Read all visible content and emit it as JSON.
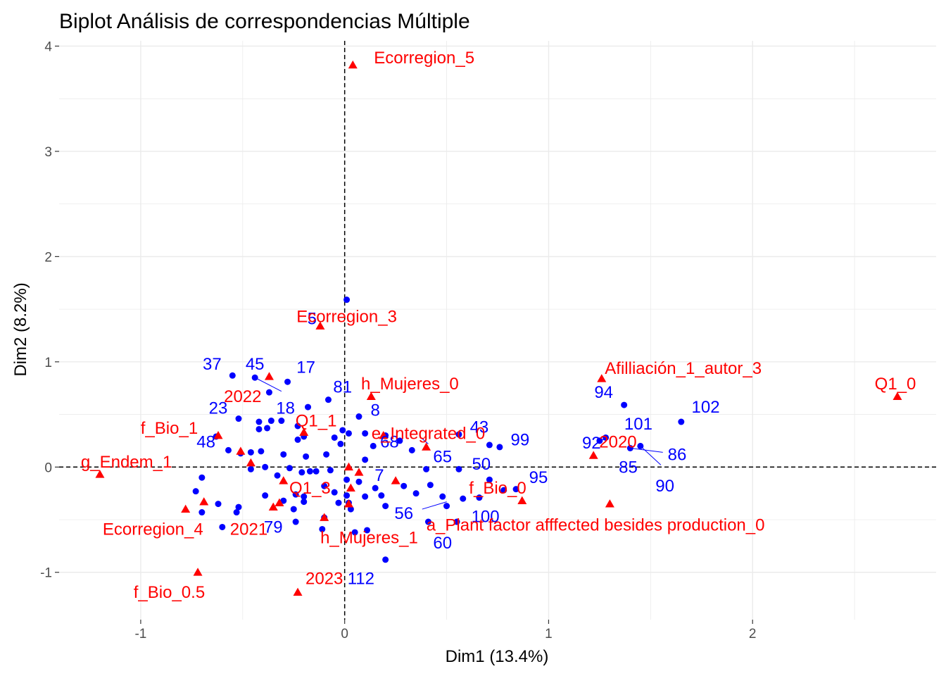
{
  "chart_data": {
    "type": "scatter",
    "title": "Biplot Análisis de correspondencias Múltiple",
    "xlabel": "Dim1 (13.4%)",
    "ylabel": "Dim2 (8.2%)",
    "xlim": [
      -1.4,
      2.9
    ],
    "ylim": [
      -1.45,
      4.05
    ],
    "x_ticks": [
      -1,
      0,
      1,
      2
    ],
    "x_tick_labels": [
      "-1",
      "0",
      "1",
      "2"
    ],
    "y_ticks": [
      -1,
      0,
      1,
      2,
      3,
      4
    ],
    "y_tick_labels": [
      "-1",
      "0",
      "1",
      "2",
      "3",
      "4"
    ],
    "grid": true,
    "reference_lines": {
      "x": 0,
      "y": 0,
      "style": "dashed"
    },
    "colors": {
      "individuals": "#0000ff",
      "variables": "#ff0000"
    },
    "individuals": {
      "name": "individuals",
      "marker": "circle",
      "points": [
        {
          "x": 0.01,
          "y": 1.59
        },
        {
          "x": -0.55,
          "y": 0.87
        },
        {
          "x": -0.44,
          "y": 0.85
        },
        {
          "x": -0.28,
          "y": 0.81
        },
        {
          "x": -0.37,
          "y": 0.71
        },
        {
          "x": -0.08,
          "y": 0.64
        },
        {
          "x": -0.52,
          "y": 0.46
        },
        {
          "x": -0.31,
          "y": 0.44
        },
        {
          "x": 0.07,
          "y": 0.48
        },
        {
          "x": -0.18,
          "y": 0.57
        },
        {
          "x": -0.42,
          "y": 0.43
        },
        {
          "x": -0.36,
          "y": 0.44
        },
        {
          "x": -0.42,
          "y": 0.36
        },
        {
          "x": -0.38,
          "y": 0.37
        },
        {
          "x": -0.23,
          "y": 0.39
        },
        {
          "x": -0.2,
          "y": 0.29
        },
        {
          "x": -0.23,
          "y": 0.26
        },
        {
          "x": -0.05,
          "y": 0.28
        },
        {
          "x": -0.02,
          "y": 0.22
        },
        {
          "x": -0.01,
          "y": 0.35
        },
        {
          "x": 0.02,
          "y": 0.32
        },
        {
          "x": 0.1,
          "y": 0.32
        },
        {
          "x": -0.63,
          "y": 0.29
        },
        {
          "x": -0.57,
          "y": 0.16
        },
        {
          "x": -0.51,
          "y": 0.13
        },
        {
          "x": -0.46,
          "y": 0.14
        },
        {
          "x": -0.41,
          "y": 0.15
        },
        {
          "x": -0.3,
          "y": 0.12
        },
        {
          "x": -0.19,
          "y": 0.1
        },
        {
          "x": -0.09,
          "y": 0.12
        },
        {
          "x": -0.46,
          "y": -0.02
        },
        {
          "x": -0.39,
          "y": 0.0
        },
        {
          "x": -0.33,
          "y": -0.08
        },
        {
          "x": -0.27,
          "y": -0.01
        },
        {
          "x": -0.21,
          "y": -0.05
        },
        {
          "x": -0.17,
          "y": -0.04
        },
        {
          "x": -0.14,
          "y": -0.04
        },
        {
          "x": -0.07,
          "y": -0.03
        },
        {
          "x": 0.01,
          "y": -0.12
        },
        {
          "x": 0.1,
          "y": 0.07
        },
        {
          "x": 0.14,
          "y": 0.2
        },
        {
          "x": 0.2,
          "y": 0.3
        },
        {
          "x": 0.27,
          "y": 0.25
        },
        {
          "x": 0.33,
          "y": 0.16
        },
        {
          "x": 0.56,
          "y": 0.31
        },
        {
          "x": 0.71,
          "y": 0.21
        },
        {
          "x": 0.76,
          "y": 0.19
        },
        {
          "x": 0.4,
          "y": -0.02
        },
        {
          "x": 0.56,
          "y": -0.02
        },
        {
          "x": -0.7,
          "y": -0.1
        },
        {
          "x": -0.73,
          "y": -0.23
        },
        {
          "x": -0.7,
          "y": -0.43
        },
        {
          "x": -0.62,
          "y": -0.35
        },
        {
          "x": -0.52,
          "y": -0.38
        },
        {
          "x": -0.53,
          "y": -0.43
        },
        {
          "x": -0.6,
          "y": -0.57
        },
        {
          "x": -0.39,
          "y": -0.27
        },
        {
          "x": -0.3,
          "y": -0.32
        },
        {
          "x": -0.24,
          "y": -0.26
        },
        {
          "x": -0.2,
          "y": -0.28
        },
        {
          "x": -0.2,
          "y": -0.33
        },
        {
          "x": -0.25,
          "y": -0.4
        },
        {
          "x": -0.1,
          "y": -0.18
        },
        {
          "x": -0.05,
          "y": -0.24
        },
        {
          "x": -0.03,
          "y": -0.34
        },
        {
          "x": 0.01,
          "y": -0.27
        },
        {
          "x": 0.02,
          "y": -0.34
        },
        {
          "x": 0.03,
          "y": -0.4
        },
        {
          "x": 0.07,
          "y": -0.14
        },
        {
          "x": 0.1,
          "y": -0.28
        },
        {
          "x": 0.15,
          "y": -0.2
        },
        {
          "x": 0.18,
          "y": -0.27
        },
        {
          "x": 0.29,
          "y": -0.18
        },
        {
          "x": 0.35,
          "y": -0.25
        },
        {
          "x": 0.42,
          "y": -0.17
        },
        {
          "x": 0.48,
          "y": -0.28
        },
        {
          "x": 0.5,
          "y": -0.37
        },
        {
          "x": 0.58,
          "y": -0.3
        },
        {
          "x": 0.66,
          "y": -0.29
        },
        {
          "x": 0.71,
          "y": -0.12
        },
        {
          "x": 0.78,
          "y": -0.22
        },
        {
          "x": 0.84,
          "y": -0.21
        },
        {
          "x": 0.55,
          "y": -0.52
        },
        {
          "x": 0.41,
          "y": -0.52
        },
        {
          "x": 0.2,
          "y": -0.37
        },
        {
          "x": -0.1,
          "y": -0.48
        },
        {
          "x": -0.24,
          "y": -0.52
        },
        {
          "x": -0.11,
          "y": -0.59
        },
        {
          "x": 0.05,
          "y": -0.62
        },
        {
          "x": 0.11,
          "y": -0.6
        },
        {
          "x": 0.2,
          "y": -0.88
        },
        {
          "x": 1.37,
          "y": 0.59
        },
        {
          "x": 1.65,
          "y": 0.43
        },
        {
          "x": 1.28,
          "y": 0.28
        },
        {
          "x": 1.4,
          "y": 0.18
        },
        {
          "x": 1.45,
          "y": 0.2
        },
        {
          "x": 1.25,
          "y": 0.25
        }
      ]
    },
    "individual_labels": [
      {
        "text": "5",
        "x": -0.16,
        "y": 1.41
      },
      {
        "text": "37",
        "x": -0.65,
        "y": 0.98
      },
      {
        "text": "45",
        "x": -0.44,
        "y": 0.98
      },
      {
        "text": "17",
        "x": -0.19,
        "y": 0.95
      },
      {
        "text": "81",
        "x": -0.01,
        "y": 0.76
      },
      {
        "text": "8",
        "x": 0.15,
        "y": 0.54
      },
      {
        "text": "18",
        "x": -0.29,
        "y": 0.56
      },
      {
        "text": "23",
        "x": -0.62,
        "y": 0.56
      },
      {
        "text": "48",
        "x": -0.68,
        "y": 0.24
      },
      {
        "text": "68",
        "x": 0.22,
        "y": 0.24
      },
      {
        "text": "43",
        "x": 0.66,
        "y": 0.38
      },
      {
        "text": "99",
        "x": 0.86,
        "y": 0.26
      },
      {
        "text": "65",
        "x": 0.48,
        "y": 0.1
      },
      {
        "text": "50",
        "x": 0.67,
        "y": 0.03
      },
      {
        "text": "7",
        "x": 0.17,
        "y": -0.08
      },
      {
        "text": "95",
        "x": 0.95,
        "y": -0.1
      },
      {
        "text": "56",
        "x": 0.29,
        "y": -0.44
      },
      {
        "text": "100",
        "x": 0.69,
        "y": -0.47
      },
      {
        "text": "60",
        "x": 0.48,
        "y": -0.72
      },
      {
        "text": "79",
        "x": -0.35,
        "y": -0.57
      },
      {
        "text": "112",
        "x": 0.08,
        "y": -1.06
      },
      {
        "text": "94",
        "x": 1.27,
        "y": 0.71
      },
      {
        "text": "101",
        "x": 1.44,
        "y": 0.41
      },
      {
        "text": "102",
        "x": 1.77,
        "y": 0.57
      },
      {
        "text": "92",
        "x": 1.21,
        "y": 0.23
      },
      {
        "text": "86",
        "x": 1.63,
        "y": 0.12
      },
      {
        "text": "85",
        "x": 1.39,
        "y": 0.0
      },
      {
        "text": "90",
        "x": 1.57,
        "y": -0.18
      }
    ],
    "variables": {
      "name": "variables",
      "marker": "triangle",
      "points": [
        {
          "x": 0.04,
          "y": 3.82
        },
        {
          "x": -0.12,
          "y": 1.34
        },
        {
          "x": 1.26,
          "y": 0.84
        },
        {
          "x": 2.71,
          "y": 0.67
        },
        {
          "x": -0.37,
          "y": 0.86
        },
        {
          "x": 0.13,
          "y": 0.67
        },
        {
          "x": -0.62,
          "y": 0.3
        },
        {
          "x": -0.2,
          "y": 0.33
        },
        {
          "x": 0.19,
          "y": 0.3
        },
        {
          "x": 0.4,
          "y": 0.19
        },
        {
          "x": 1.22,
          "y": 0.11
        },
        {
          "x": -1.2,
          "y": -0.07
        },
        {
          "x": -0.51,
          "y": 0.15
        },
        {
          "x": -0.46,
          "y": 0.04
        },
        {
          "x": 0.02,
          "y": 0.0
        },
        {
          "x": 0.07,
          "y": -0.05
        },
        {
          "x": -0.3,
          "y": -0.13
        },
        {
          "x": 0.25,
          "y": -0.13
        },
        {
          "x": 0.03,
          "y": -0.2
        },
        {
          "x": 0.87,
          "y": -0.32
        },
        {
          "x": 1.3,
          "y": -0.35
        },
        {
          "x": -0.69,
          "y": -0.33
        },
        {
          "x": -0.32,
          "y": -0.34
        },
        {
          "x": -0.35,
          "y": -0.38
        },
        {
          "x": 0.02,
          "y": -0.35
        },
        {
          "x": -0.78,
          "y": -0.4
        },
        {
          "x": -0.1,
          "y": -0.48
        },
        {
          "x": -0.72,
          "y": -1.0
        },
        {
          "x": -0.23,
          "y": -1.19
        }
      ]
    },
    "variable_labels": [
      {
        "text": "Ecorregion_5",
        "x": 0.39,
        "y": 3.89
      },
      {
        "text": "Ecorregion_3",
        "x": 0.01,
        "y": 1.43
      },
      {
        "text": "Afilliación_1_autor_3",
        "x": 1.66,
        "y": 0.94
      },
      {
        "text": "Q1_0",
        "x": 2.7,
        "y": 0.79
      },
      {
        "text": "h_Mujeres_0",
        "x": 0.32,
        "y": 0.79
      },
      {
        "text": "2022",
        "x": -0.5,
        "y": 0.67
      },
      {
        "text": "f_Bio_1",
        "x": -0.86,
        "y": 0.37
      },
      {
        "text": "Q1_1",
        "x": -0.14,
        "y": 0.44
      },
      {
        "text": "e_Integrated_0",
        "x": 0.41,
        "y": 0.32
      },
      {
        "text": "2020",
        "x": 1.34,
        "y": 0.24
      },
      {
        "text": "g_Endem_1",
        "x": -1.07,
        "y": 0.05
      },
      {
        "text": "Q1_3",
        "x": -0.17,
        "y": -0.2
      },
      {
        "text": "f_Bio_0",
        "x": 0.75,
        "y": -0.2
      },
      {
        "text": "a_Plant factor afffected besides production_0",
        "x": 1.23,
        "y": -0.55
      },
      {
        "text": "Ecorregion_4",
        "x": -0.94,
        "y": -0.59
      },
      {
        "text": "2021",
        "x": -0.47,
        "y": -0.59
      },
      {
        "text": "h_Mujeres_1",
        "x": 0.12,
        "y": -0.67
      },
      {
        "text": "2023",
        "x": -0.1,
        "y": -1.06
      },
      {
        "text": "f_Bio_0.5",
        "x": -0.86,
        "y": -1.19
      }
    ],
    "connector_segments": [
      {
        "from": [
          -0.44,
          0.85
        ],
        "to": [
          -0.31,
          0.72
        ]
      },
      {
        "from": [
          1.4,
          0.18
        ],
        "to": [
          1.56,
          0.14
        ]
      },
      {
        "from": [
          1.45,
          0.2
        ],
        "to": [
          1.55,
          0.02
        ]
      },
      {
        "from": [
          1.28,
          0.26
        ],
        "to": [
          1.26,
          0.26
        ]
      },
      {
        "from": [
          0.41,
          0.22
        ],
        "to": [
          0.38,
          0.27
        ]
      },
      {
        "from": [
          0.38,
          -0.4
        ],
        "to": [
          0.5,
          -0.33
        ]
      }
    ]
  }
}
